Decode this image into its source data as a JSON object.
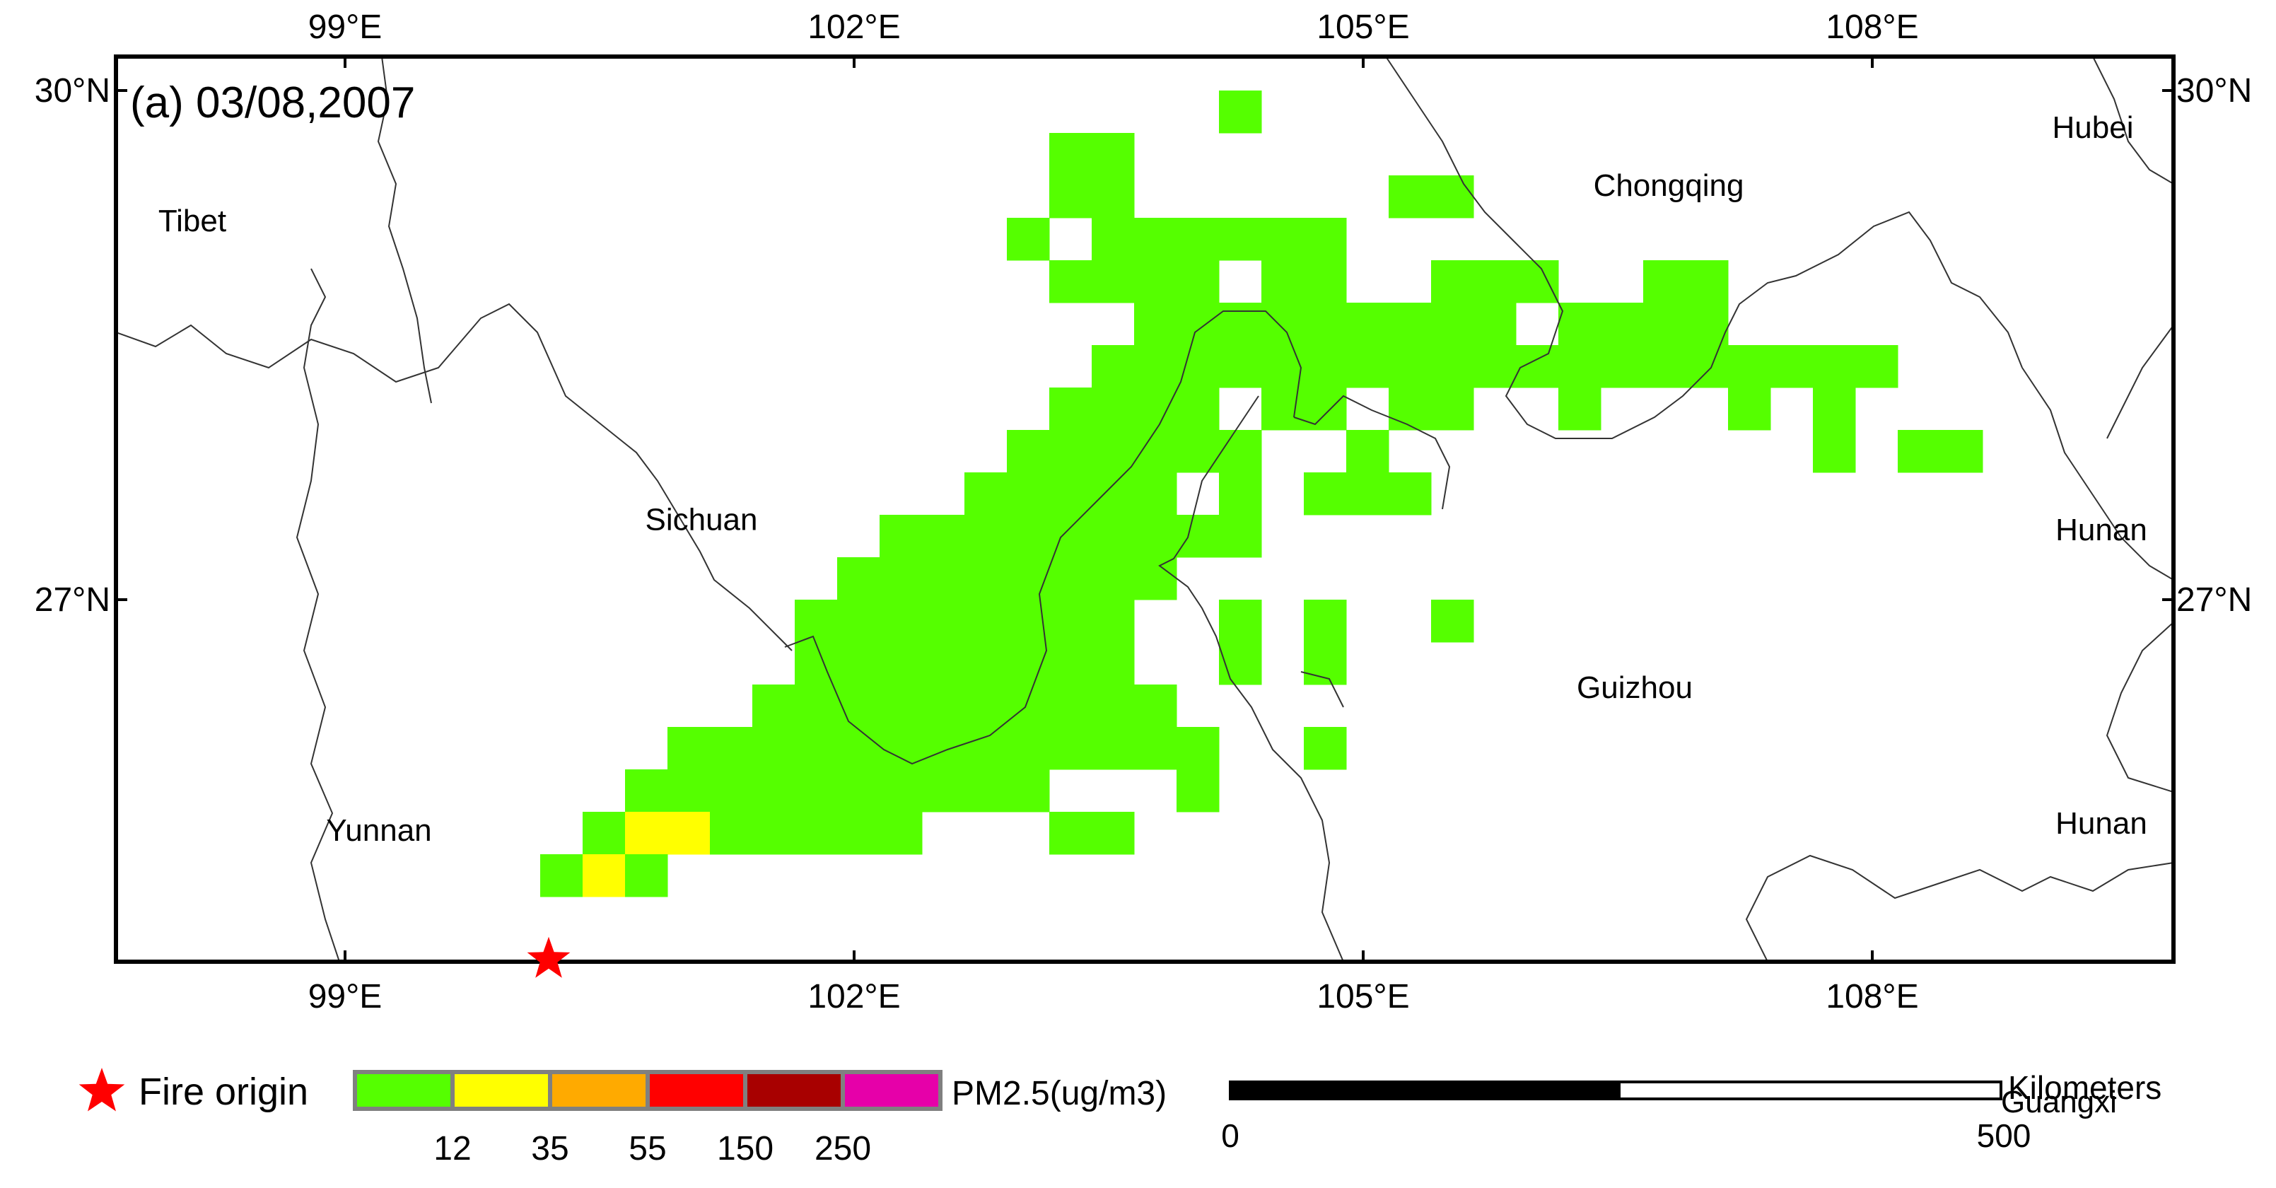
{
  "panel_title": "(a) 03/08,2007",
  "lon_ticks": [
    {
      "lon": 99,
      "label": "99°E"
    },
    {
      "lon": 102,
      "label": "102°E"
    },
    {
      "lon": 105,
      "label": "105°E"
    },
    {
      "lon": 108,
      "label": "108°E"
    }
  ],
  "lat_ticks": [
    {
      "lat": 30,
      "label": "30°N"
    },
    {
      "lat": 27,
      "label": "27°N"
    }
  ],
  "regions": [
    {
      "name": "Tibet",
      "lon": 98.1,
      "lat": 29.17
    },
    {
      "name": "Sichuan",
      "lon": 101.1,
      "lat": 27.41
    },
    {
      "name": "Yunnan",
      "lon": 99.2,
      "lat": 25.58
    },
    {
      "name": "Chongqing",
      "lon": 106.8,
      "lat": 29.38
    },
    {
      "name": "Guizhou",
      "lon": 106.6,
      "lat": 26.42
    },
    {
      "name": "Hubei",
      "lon": 109.3,
      "lat": 29.72
    },
    {
      "name": "Hunan",
      "lon": 109.35,
      "lat": 27.35
    },
    {
      "name": "Hunan",
      "lon": 109.35,
      "lat": 25.62
    },
    {
      "name": "Guangxi",
      "lon": 109.1,
      "lat": 23.98
    }
  ],
  "fire_origin": {
    "lon": 100.2,
    "lat": 24.88
  },
  "pm25_grid": {
    "cell_size_deg": 0.25,
    "origin_lon": 97.65,
    "origin_lat": 30.0,
    "cells": [
      {
        "row": 0,
        "col": 26,
        "cls": 1
      },
      {
        "row": 1,
        "col": 22,
        "cls": 1
      },
      {
        "row": 1,
        "col": 23,
        "cls": 1
      },
      {
        "row": 2,
        "col": 22,
        "cls": 1
      },
      {
        "row": 2,
        "col": 23,
        "cls": 1
      },
      {
        "row": 2,
        "col": 30,
        "cls": 1
      },
      {
        "row": 2,
        "col": 31,
        "cls": 1
      },
      {
        "row": 3,
        "col": 21,
        "cls": 1
      },
      {
        "row": 3,
        "col": 23,
        "cls": 1
      },
      {
        "row": 3,
        "col": 24,
        "cls": 1
      },
      {
        "row": 3,
        "col": 25,
        "cls": 1
      },
      {
        "row": 3,
        "col": 26,
        "cls": 1
      },
      {
        "row": 3,
        "col": 27,
        "cls": 1
      },
      {
        "row": 3,
        "col": 28,
        "cls": 1
      },
      {
        "row": 4,
        "col": 22,
        "cls": 1
      },
      {
        "row": 4,
        "col": 23,
        "cls": 1
      },
      {
        "row": 4,
        "col": 24,
        "cls": 1
      },
      {
        "row": 4,
        "col": 25,
        "cls": 1
      },
      {
        "row": 4,
        "col": 27,
        "cls": 1
      },
      {
        "row": 4,
        "col": 28,
        "cls": 1
      },
      {
        "row": 4,
        "col": 31,
        "cls": 1
      },
      {
        "row": 4,
        "col": 32,
        "cls": 1
      },
      {
        "row": 4,
        "col": 33,
        "cls": 1
      },
      {
        "row": 4,
        "col": 36,
        "cls": 1
      },
      {
        "row": 4,
        "col": 37,
        "cls": 1
      },
      {
        "row": 5,
        "col": 24,
        "cls": 1
      },
      {
        "row": 5,
        "col": 25,
        "cls": 1
      },
      {
        "row": 5,
        "col": 26,
        "cls": 1
      },
      {
        "row": 5,
        "col": 27,
        "cls": 1
      },
      {
        "row": 5,
        "col": 28,
        "cls": 1
      },
      {
        "row": 5,
        "col": 29,
        "cls": 1
      },
      {
        "row": 5,
        "col": 30,
        "cls": 1
      },
      {
        "row": 5,
        "col": 31,
        "cls": 1
      },
      {
        "row": 5,
        "col": 32,
        "cls": 1
      },
      {
        "row": 5,
        "col": 34,
        "cls": 1
      },
      {
        "row": 5,
        "col": 35,
        "cls": 1
      },
      {
        "row": 5,
        "col": 36,
        "cls": 1
      },
      {
        "row": 5,
        "col": 37,
        "cls": 1
      },
      {
        "row": 6,
        "col": 23,
        "cls": 1
      },
      {
        "row": 6,
        "col": 24,
        "cls": 1
      },
      {
        "row": 6,
        "col": 25,
        "cls": 1
      },
      {
        "row": 6,
        "col": 26,
        "cls": 1
      },
      {
        "row": 6,
        "col": 27,
        "cls": 1
      },
      {
        "row": 6,
        "col": 28,
        "cls": 1
      },
      {
        "row": 6,
        "col": 29,
        "cls": 1
      },
      {
        "row": 6,
        "col": 30,
        "cls": 1
      },
      {
        "row": 6,
        "col": 31,
        "cls": 1
      },
      {
        "row": 6,
        "col": 32,
        "cls": 1
      },
      {
        "row": 6,
        "col": 33,
        "cls": 1
      },
      {
        "row": 6,
        "col": 34,
        "cls": 1
      },
      {
        "row": 6,
        "col": 35,
        "cls": 1
      },
      {
        "row": 6,
        "col": 36,
        "cls": 1
      },
      {
        "row": 6,
        "col": 37,
        "cls": 1
      },
      {
        "row": 6,
        "col": 38,
        "cls": 1
      },
      {
        "row": 6,
        "col": 39,
        "cls": 1
      },
      {
        "row": 6,
        "col": 40,
        "cls": 1
      },
      {
        "row": 6,
        "col": 41,
        "cls": 1
      },
      {
        "row": 7,
        "col": 22,
        "cls": 1
      },
      {
        "row": 7,
        "col": 23,
        "cls": 1
      },
      {
        "row": 7,
        "col": 24,
        "cls": 1
      },
      {
        "row": 7,
        "col": 25,
        "cls": 1
      },
      {
        "row": 7,
        "col": 27,
        "cls": 1
      },
      {
        "row": 7,
        "col": 28,
        "cls": 1
      },
      {
        "row": 7,
        "col": 30,
        "cls": 1
      },
      {
        "row": 7,
        "col": 31,
        "cls": 1
      },
      {
        "row": 7,
        "col": 34,
        "cls": 1
      },
      {
        "row": 7,
        "col": 38,
        "cls": 1
      },
      {
        "row": 7,
        "col": 40,
        "cls": 1
      },
      {
        "row": 8,
        "col": 21,
        "cls": 1
      },
      {
        "row": 8,
        "col": 22,
        "cls": 1
      },
      {
        "row": 8,
        "col": 23,
        "cls": 1
      },
      {
        "row": 8,
        "col": 24,
        "cls": 1
      },
      {
        "row": 8,
        "col": 25,
        "cls": 1
      },
      {
        "row": 8,
        "col": 26,
        "cls": 1
      },
      {
        "row": 8,
        "col": 29,
        "cls": 1
      },
      {
        "row": 8,
        "col": 40,
        "cls": 1
      },
      {
        "row": 8,
        "col": 42,
        "cls": 1
      },
      {
        "row": 8,
        "col": 43,
        "cls": 1
      },
      {
        "row": 9,
        "col": 20,
        "cls": 1
      },
      {
        "row": 9,
        "col": 21,
        "cls": 1
      },
      {
        "row": 9,
        "col": 22,
        "cls": 1
      },
      {
        "row": 9,
        "col": 23,
        "cls": 1
      },
      {
        "row": 9,
        "col": 24,
        "cls": 1
      },
      {
        "row": 9,
        "col": 26,
        "cls": 1
      },
      {
        "row": 9,
        "col": 28,
        "cls": 1
      },
      {
        "row": 9,
        "col": 29,
        "cls": 1
      },
      {
        "row": 9,
        "col": 30,
        "cls": 1
      },
      {
        "row": 10,
        "col": 18,
        "cls": 1
      },
      {
        "row": 10,
        "col": 19,
        "cls": 1
      },
      {
        "row": 10,
        "col": 20,
        "cls": 1
      },
      {
        "row": 10,
        "col": 21,
        "cls": 1
      },
      {
        "row": 10,
        "col": 22,
        "cls": 1
      },
      {
        "row": 10,
        "col": 23,
        "cls": 1
      },
      {
        "row": 10,
        "col": 24,
        "cls": 1
      },
      {
        "row": 10,
        "col": 25,
        "cls": 1
      },
      {
        "row": 10,
        "col": 26,
        "cls": 1
      },
      {
        "row": 11,
        "col": 17,
        "cls": 1
      },
      {
        "row": 11,
        "col": 18,
        "cls": 1
      },
      {
        "row": 11,
        "col": 19,
        "cls": 1
      },
      {
        "row": 11,
        "col": 20,
        "cls": 1
      },
      {
        "row": 11,
        "col": 21,
        "cls": 1
      },
      {
        "row": 11,
        "col": 22,
        "cls": 1
      },
      {
        "row": 11,
        "col": 23,
        "cls": 1
      },
      {
        "row": 11,
        "col": 24,
        "cls": 1
      },
      {
        "row": 12,
        "col": 16,
        "cls": 1
      },
      {
        "row": 12,
        "col": 17,
        "cls": 1
      },
      {
        "row": 12,
        "col": 18,
        "cls": 1
      },
      {
        "row": 12,
        "col": 19,
        "cls": 1
      },
      {
        "row": 12,
        "col": 20,
        "cls": 1
      },
      {
        "row": 12,
        "col": 21,
        "cls": 1
      },
      {
        "row": 12,
        "col": 22,
        "cls": 1
      },
      {
        "row": 12,
        "col": 23,
        "cls": 1
      },
      {
        "row": 12,
        "col": 26,
        "cls": 1
      },
      {
        "row": 12,
        "col": 28,
        "cls": 1
      },
      {
        "row": 12,
        "col": 31,
        "cls": 1
      },
      {
        "row": 13,
        "col": 16,
        "cls": 1
      },
      {
        "row": 13,
        "col": 17,
        "cls": 1
      },
      {
        "row": 13,
        "col": 18,
        "cls": 1
      },
      {
        "row": 13,
        "col": 19,
        "cls": 1
      },
      {
        "row": 13,
        "col": 20,
        "cls": 1
      },
      {
        "row": 13,
        "col": 21,
        "cls": 1
      },
      {
        "row": 13,
        "col": 22,
        "cls": 1
      },
      {
        "row": 13,
        "col": 23,
        "cls": 1
      },
      {
        "row": 13,
        "col": 26,
        "cls": 1
      },
      {
        "row": 13,
        "col": 28,
        "cls": 1
      },
      {
        "row": 14,
        "col": 15,
        "cls": 1
      },
      {
        "row": 14,
        "col": 16,
        "cls": 1
      },
      {
        "row": 14,
        "col": 17,
        "cls": 1
      },
      {
        "row": 14,
        "col": 18,
        "cls": 1
      },
      {
        "row": 14,
        "col": 19,
        "cls": 1
      },
      {
        "row": 14,
        "col": 20,
        "cls": 1
      },
      {
        "row": 14,
        "col": 21,
        "cls": 1
      },
      {
        "row": 14,
        "col": 22,
        "cls": 1
      },
      {
        "row": 14,
        "col": 23,
        "cls": 1
      },
      {
        "row": 14,
        "col": 24,
        "cls": 1
      },
      {
        "row": 15,
        "col": 13,
        "cls": 1
      },
      {
        "row": 15,
        "col": 14,
        "cls": 1
      },
      {
        "row": 15,
        "col": 15,
        "cls": 1
      },
      {
        "row": 15,
        "col": 16,
        "cls": 1
      },
      {
        "row": 15,
        "col": 17,
        "cls": 1
      },
      {
        "row": 15,
        "col": 18,
        "cls": 1
      },
      {
        "row": 15,
        "col": 19,
        "cls": 1
      },
      {
        "row": 15,
        "col": 20,
        "cls": 1
      },
      {
        "row": 15,
        "col": 21,
        "cls": 1
      },
      {
        "row": 15,
        "col": 22,
        "cls": 1
      },
      {
        "row": 15,
        "col": 23,
        "cls": 1
      },
      {
        "row": 15,
        "col": 24,
        "cls": 1
      },
      {
        "row": 15,
        "col": 25,
        "cls": 1
      },
      {
        "row": 15,
        "col": 28,
        "cls": 1
      },
      {
        "row": 16,
        "col": 12,
        "cls": 1
      },
      {
        "row": 16,
        "col": 13,
        "cls": 1
      },
      {
        "row": 16,
        "col": 14,
        "cls": 1
      },
      {
        "row": 16,
        "col": 15,
        "cls": 1
      },
      {
        "row": 16,
        "col": 16,
        "cls": 1
      },
      {
        "row": 16,
        "col": 17,
        "cls": 1
      },
      {
        "row": 16,
        "col": 18,
        "cls": 1
      },
      {
        "row": 16,
        "col": 19,
        "cls": 1
      },
      {
        "row": 16,
        "col": 20,
        "cls": 1
      },
      {
        "row": 16,
        "col": 21,
        "cls": 1
      },
      {
        "row": 16,
        "col": 25,
        "cls": 1
      },
      {
        "row": 17,
        "col": 11,
        "cls": 1
      },
      {
        "row": 17,
        "col": 12,
        "cls": 2
      },
      {
        "row": 17,
        "col": 13,
        "cls": 2
      },
      {
        "row": 17,
        "col": 14,
        "cls": 1
      },
      {
        "row": 17,
        "col": 15,
        "cls": 1
      },
      {
        "row": 17,
        "col": 16,
        "cls": 1
      },
      {
        "row": 17,
        "col": 17,
        "cls": 1
      },
      {
        "row": 17,
        "col": 18,
        "cls": 1
      },
      {
        "row": 17,
        "col": 22,
        "cls": 1
      },
      {
        "row": 17,
        "col": 23,
        "cls": 1
      },
      {
        "row": 18,
        "col": 10,
        "cls": 1
      },
      {
        "row": 18,
        "col": 11,
        "cls": 2
      },
      {
        "row": 18,
        "col": 12,
        "cls": 1
      }
    ]
  },
  "legend": {
    "fire_label": "Fire origin",
    "pm_label": "PM2.5(ug/m3)",
    "colors": [
      "#55ff00",
      "#ffff00",
      "#ffaa00",
      "#ff0000",
      "#a80000",
      "#e600a9"
    ],
    "breaks": [
      "12",
      "35",
      "55",
      "150",
      "250"
    ]
  },
  "scalebar": {
    "start": "0",
    "end": "500",
    "units": "Kilometers"
  }
}
